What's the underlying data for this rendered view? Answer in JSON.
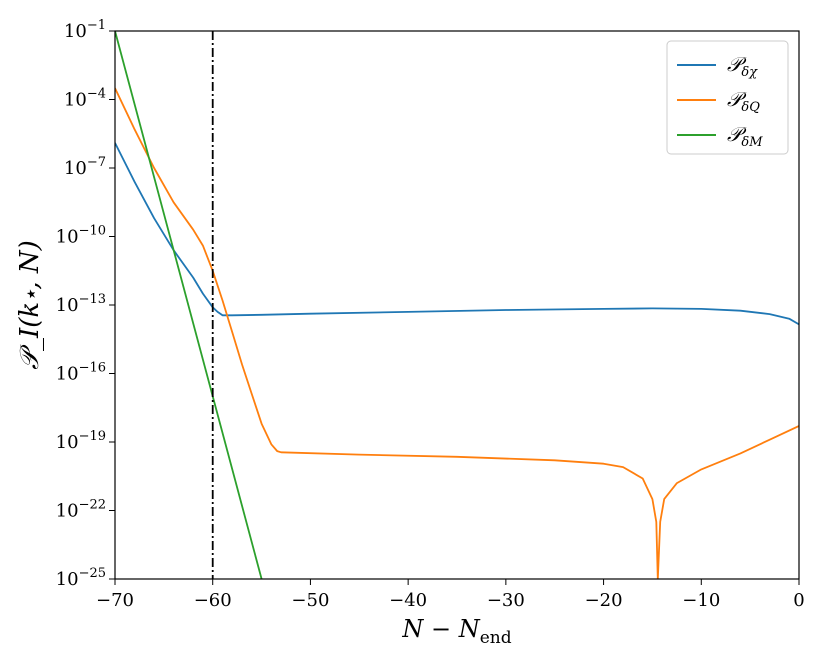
{
  "chart_data": {
    "type": "line",
    "xlabel": "N − N_end",
    "ylabel": "𝒫_I(k⋆, N)",
    "xlim": [
      -70,
      0
    ],
    "ylim_log10": [
      -25,
      -1
    ],
    "y_scale": "log",
    "grid": false,
    "legend_placement": "top-right",
    "x_ticks": [
      {
        "value": -70,
        "label": "−70"
      },
      {
        "value": -60,
        "label": "−60"
      },
      {
        "value": -50,
        "label": "−50"
      },
      {
        "value": -40,
        "label": "−40"
      },
      {
        "value": -30,
        "label": "−30"
      },
      {
        "value": -20,
        "label": "−20"
      },
      {
        "value": -10,
        "label": "−10"
      },
      {
        "value": 0,
        "label": "0"
      }
    ],
    "y_ticks": [
      {
        "log10": -1,
        "base": "10",
        "exp": "−1"
      },
      {
        "log10": -4,
        "base": "10",
        "exp": "−4"
      },
      {
        "log10": -7,
        "base": "10",
        "exp": "−7"
      },
      {
        "log10": -10,
        "base": "10",
        "exp": "−10"
      },
      {
        "log10": -13,
        "base": "10",
        "exp": "−13"
      },
      {
        "log10": -16,
        "base": "10",
        "exp": "−16"
      },
      {
        "log10": -19,
        "base": "10",
        "exp": "−19"
      },
      {
        "log10": -22,
        "base": "10",
        "exp": "−22"
      },
      {
        "log10": -25,
        "base": "10",
        "exp": "−25"
      }
    ],
    "vline": {
      "x": -60,
      "style": "dash-dot",
      "color": "#000000"
    },
    "series": [
      {
        "name": "𝒫_δχ",
        "label_main": "𝒫",
        "label_sub": "δχ",
        "color": "#1f77b4",
        "points": [
          [
            -70,
            -5.9
          ],
          [
            -68,
            -7.6
          ],
          [
            -66,
            -9.2
          ],
          [
            -64,
            -10.6
          ],
          [
            -62,
            -11.8
          ],
          [
            -61,
            -12.5
          ],
          [
            -60,
            -13.1
          ],
          [
            -59.5,
            -13.3
          ],
          [
            -59,
            -13.45
          ],
          [
            -58,
            -13.45
          ],
          [
            -55,
            -13.43
          ],
          [
            -50,
            -13.38
          ],
          [
            -40,
            -13.3
          ],
          [
            -30,
            -13.22
          ],
          [
            -20,
            -13.17
          ],
          [
            -15,
            -13.15
          ],
          [
            -10,
            -13.17
          ],
          [
            -6,
            -13.25
          ],
          [
            -3,
            -13.4
          ],
          [
            -1,
            -13.6
          ],
          [
            0,
            -13.85
          ]
        ]
      },
      {
        "name": "𝒫_δQ",
        "label_main": "𝒫",
        "label_sub": "δQ",
        "color": "#ff7f0e",
        "points": [
          [
            -70,
            -3.5
          ],
          [
            -68,
            -5.3
          ],
          [
            -66,
            -7.0
          ],
          [
            -64,
            -8.5
          ],
          [
            -62,
            -9.7
          ],
          [
            -61,
            -10.4
          ],
          [
            -60,
            -11.5
          ],
          [
            -59,
            -12.8
          ],
          [
            -58,
            -14.2
          ],
          [
            -57,
            -15.6
          ],
          [
            -56,
            -16.9
          ],
          [
            -55,
            -18.2
          ],
          [
            -54,
            -19.1
          ],
          [
            -53.4,
            -19.4
          ],
          [
            -53,
            -19.45
          ],
          [
            -45,
            -19.55
          ],
          [
            -35,
            -19.65
          ],
          [
            -25,
            -19.8
          ],
          [
            -20,
            -19.95
          ],
          [
            -18,
            -20.1
          ],
          [
            -16,
            -20.6
          ],
          [
            -15,
            -21.5
          ],
          [
            -14.6,
            -22.5
          ],
          [
            -14.45,
            -25
          ],
          [
            -14.2,
            -22.5
          ],
          [
            -13.8,
            -21.5
          ],
          [
            -12.5,
            -20.8
          ],
          [
            -10,
            -20.2
          ],
          [
            -6,
            -19.5
          ],
          [
            -3,
            -18.9
          ],
          [
            0,
            -18.3
          ]
        ]
      },
      {
        "name": "𝒫_δM",
        "label_main": "𝒫",
        "label_sub": "δM",
        "color": "#2ca02c",
        "points": [
          [
            -70,
            -1.0
          ],
          [
            -55,
            -25
          ]
        ]
      }
    ]
  }
}
